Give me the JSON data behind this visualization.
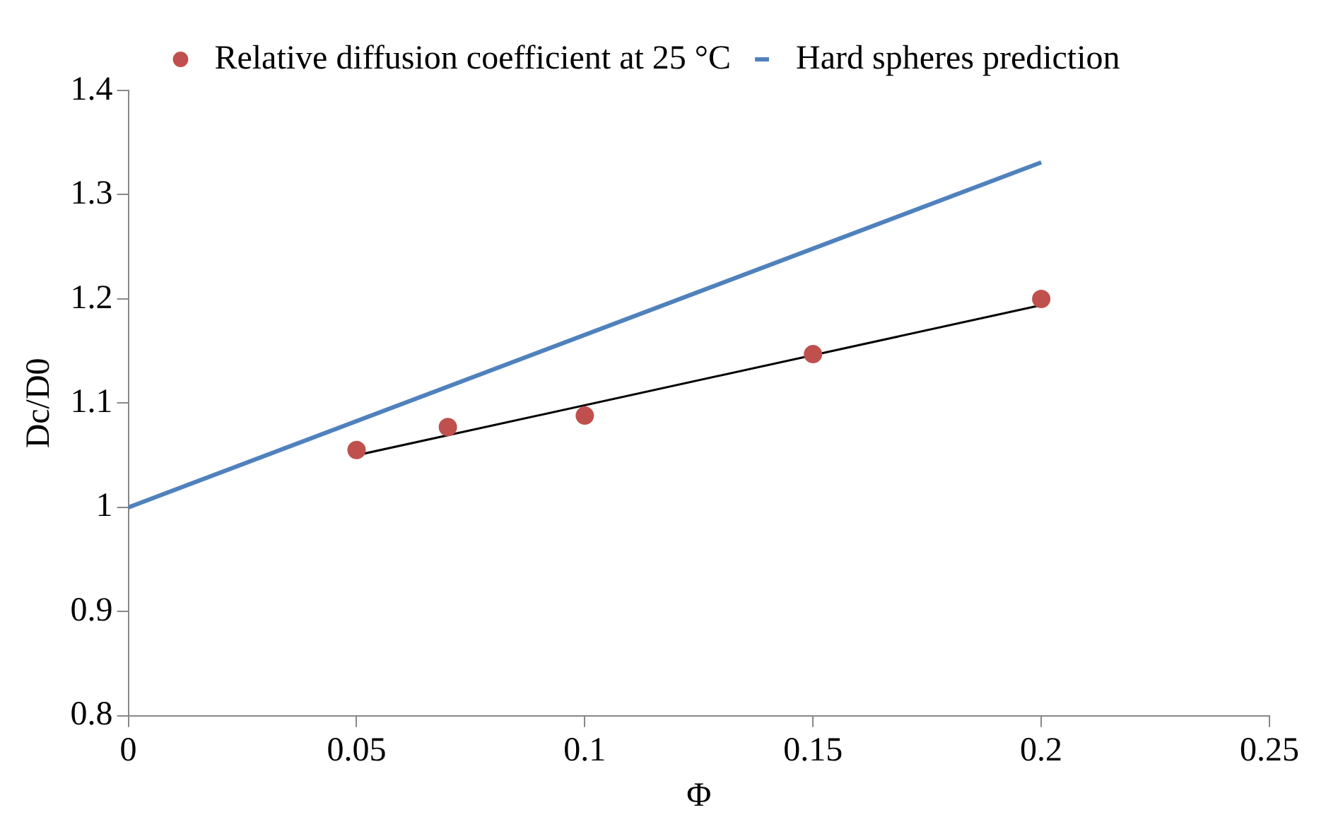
{
  "chart_data": {
    "type": "scatter",
    "xlabel": "Φ",
    "ylabel": "Dc/D0",
    "xlim": [
      0,
      0.25
    ],
    "xticks": [
      0,
      0.05,
      0.1,
      0.15,
      0.2,
      0.25
    ],
    "ylim": [
      0.8,
      1.4
    ],
    "yticks": [
      0.8,
      0.9,
      1,
      1.1,
      1.2,
      1.3,
      1.4
    ],
    "grid": false,
    "legend": "top",
    "series": [
      {
        "name": "Relative diffusion coefficient at 25 °C",
        "type": "scatter",
        "marker": "circle",
        "color": "#c0504d",
        "x": [
          0.05,
          0.07,
          0.1,
          0.15,
          0.2
        ],
        "values": [
          1.055,
          1.077,
          1.088,
          1.147,
          1.2
        ]
      },
      {
        "name": "Hard spheres prediction",
        "type": "line",
        "marker": "none",
        "color": "#4f81bd",
        "x": [
          0,
          0.2
        ],
        "values": [
          1,
          1.331
        ]
      },
      {
        "type": "line",
        "marker": "none",
        "color": "#000000",
        "x": [
          0.05,
          0.2
        ],
        "values": [
          1.05,
          1.194
        ]
      }
    ]
  }
}
